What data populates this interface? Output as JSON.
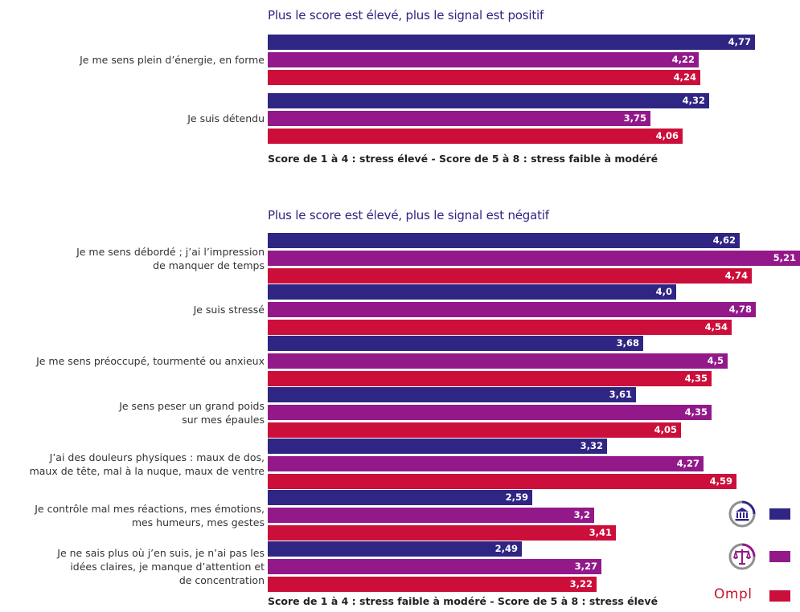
{
  "colors": {
    "series1": "#2f2583",
    "series2": "#93198a",
    "series3": "#cc0e3a",
    "icon_gray": "#8f8f8f"
  },
  "legend": [
    {
      "icon": "bank-building-icon"
    },
    {
      "icon": "scales-of-justice-icon"
    },
    {
      "icon": "ompl-logo",
      "text": "Ompl"
    }
  ],
  "chart_data": [
    {
      "type": "bar",
      "orientation": "horizontal",
      "title": "Plus le score est élevé, plus le signal est positif",
      "note": "Score de 1 à 4 : stress élevé - Score de 5 à 8 : stress faible à modéré",
      "categories": [
        [
          "Je me sens plein d’énergie, en forme"
        ],
        [
          "Je suis détendu"
        ]
      ],
      "series": [
        {
          "values": [
            4.77,
            4.32
          ],
          "labels": [
            "4,77",
            "4,32"
          ]
        },
        {
          "values": [
            4.22,
            3.75
          ],
          "labels": [
            "4,22",
            "3,75"
          ]
        },
        {
          "values": [
            4.24,
            4.06
          ],
          "labels": [
            "4,24",
            "4,06"
          ]
        }
      ]
    },
    {
      "type": "bar",
      "orientation": "horizontal",
      "title": "Plus le score est élevé, plus le signal est négatif",
      "note": "Score de 1 à 4 : stress faible à modéré - Score de 5 à 8 : stress élevé",
      "categories": [
        [
          "Je me sens débordé ; j’ai l’impression",
          "de manquer de temps"
        ],
        [
          "Je suis stressé"
        ],
        [
          "Je me sens préoccupé, tourmenté ou anxieux"
        ],
        [
          "Je sens peser un grand poids",
          "sur mes épaules"
        ],
        [
          "J’ai des douleurs physiques : maux de dos,",
          "maux de tête, mal à la nuque, maux de ventre"
        ],
        [
          "Je contrôle mal mes réactions, mes émotions,",
          "mes humeurs, mes gestes"
        ],
        [
          "Je ne sais plus où j’en suis, je n’ai pas les",
          "idées claires, je manque d’attention et",
          "de concentration"
        ]
      ],
      "series": [
        {
          "values": [
            4.62,
            4.0,
            3.68,
            3.61,
            3.32,
            2.59,
            2.49
          ],
          "labels": [
            "4,62",
            "4,0",
            "3,68",
            "3,61",
            "3,32",
            "2,59",
            "2,49"
          ]
        },
        {
          "values": [
            5.21,
            4.78,
            4.5,
            4.35,
            4.27,
            3.2,
            3.27
          ],
          "labels": [
            "5,21",
            "4,78",
            "4,5",
            "4,35",
            "4,27",
            "3,2",
            "3,27"
          ]
        },
        {
          "values": [
            4.74,
            4.54,
            4.35,
            4.05,
            4.59,
            3.41,
            3.22
          ],
          "labels": [
            "4,74",
            "4,54",
            "4,35",
            "4,05",
            "4,59",
            "3,41",
            "3,22"
          ]
        }
      ]
    }
  ]
}
